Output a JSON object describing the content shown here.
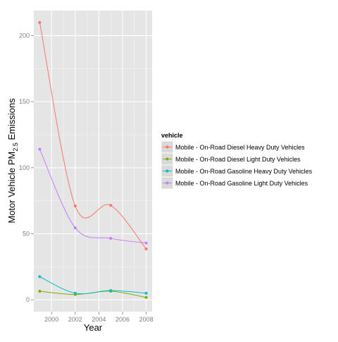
{
  "chart_data": {
    "type": "line",
    "xlabel": "Year",
    "ylabel": {
      "prefix": "Motor Vehicle PM",
      "subscript": "2.5",
      "suffix": " Emissions"
    },
    "xlim": [
      1998.5,
      2008.5
    ],
    "ylim": [
      -9,
      219
    ],
    "x_ticks": [
      2000,
      2002,
      2004,
      2006,
      2008
    ],
    "y_ticks": [
      0,
      50,
      100,
      150,
      200
    ],
    "grid": true,
    "legend_position": "right",
    "legend_title": "vehicle",
    "x": [
      1999,
      2002,
      2005,
      2008
    ],
    "series": [
      {
        "name": "Mobile - On-Road Diesel Heavy Duty Vehicles",
        "color": "#F8766D",
        "values": [
          210,
          71,
          71.5,
          38.5
        ]
      },
      {
        "name": "Mobile - On-Road Diesel Light Duty Vehicles",
        "color": "#7CAE00",
        "values": [
          6.5,
          4,
          6.5,
          1.8
        ]
      },
      {
        "name": "Mobile - On-Road Gasoline Heavy Duty Vehicles",
        "color": "#00BFC4",
        "values": [
          17.5,
          5,
          7,
          5
        ]
      },
      {
        "name": "Mobile - On-Road Gasoline Light Duty Vehicles",
        "color": "#C77CFF",
        "values": [
          114,
          54.5,
          46.5,
          43
        ]
      }
    ]
  }
}
